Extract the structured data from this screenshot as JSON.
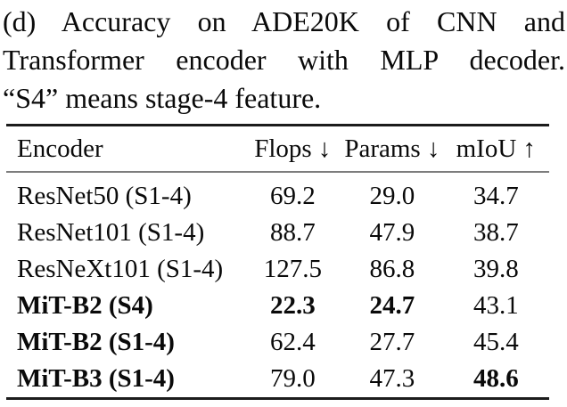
{
  "caption": {
    "lines": [
      "(d) Accuracy on ADE20K of CNN and",
      "Transformer encoder with MLP decoder.",
      "“S4” means stage-4 feature."
    ]
  },
  "table": {
    "columns": {
      "encoder": "Encoder",
      "flops": "Flops ↓",
      "params": "Params ↓",
      "miou": "mIoU ↑"
    },
    "rows": [
      {
        "encoder": "ResNet50 (S1-4)",
        "flops": "69.2",
        "params": "29.0",
        "miou": "34.7",
        "bold": []
      },
      {
        "encoder": "ResNet101 (S1-4)",
        "flops": "88.7",
        "params": "47.9",
        "miou": "38.7",
        "bold": []
      },
      {
        "encoder": "ResNeXt101 (S1-4)",
        "flops": "127.5",
        "params": "86.8",
        "miou": "39.8",
        "bold": []
      },
      {
        "encoder": "MiT-B2 (S4)",
        "flops": "22.3",
        "params": "24.7",
        "miou": "43.1",
        "bold": [
          "encoder",
          "flops",
          "params"
        ]
      },
      {
        "encoder": "MiT-B2 (S1-4)",
        "flops": "62.4",
        "params": "27.7",
        "miou": "45.4",
        "bold": [
          "encoder"
        ]
      },
      {
        "encoder": "MiT-B3 (S1-4)",
        "flops": "79.0",
        "params": "47.3",
        "miou": "48.6",
        "bold": [
          "encoder",
          "miou"
        ]
      }
    ]
  }
}
